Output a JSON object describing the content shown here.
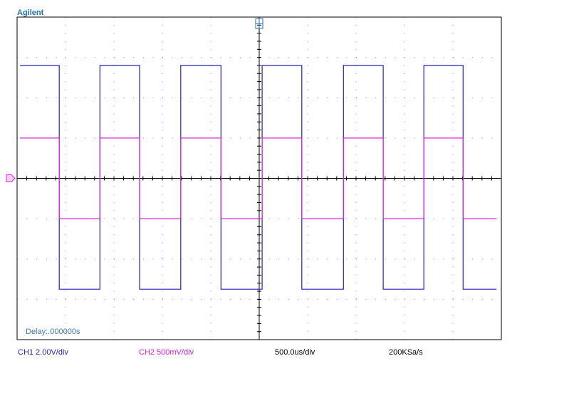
{
  "brand": "Agilent",
  "chart_data": {
    "type": "line",
    "x": [
      30,
      435,
      435,
      855,
      855,
      1265,
      1265,
      1690,
      1690,
      2105,
      2105,
      2530,
      2530,
      2940,
      2940,
      3370,
      3370,
      3780,
      3780,
      4200,
      4200,
      4605,
      4605,
      4950
    ],
    "xlim": [
      0,
      5000
    ],
    "ylim": [
      -4,
      4
    ],
    "series": [
      {
        "name": "CH1 2.00V/div",
        "color": "#2424b4",
        "values": [
          2.8,
          2.8,
          -2.75,
          -2.75,
          2.8,
          2.8,
          -2.75,
          -2.75,
          2.8,
          2.8,
          -2.75,
          -2.75,
          2.8,
          2.8,
          -2.75,
          -2.75,
          2.8,
          2.8,
          -2.75,
          -2.75,
          2.8,
          2.8,
          -2.75,
          -2.75
        ]
      },
      {
        "name": "CH2 500mV/div",
        "color": "#e020e0",
        "values": [
          1.0,
          1.0,
          -1.0,
          -1.0,
          1.0,
          1.0,
          -1.0,
          -1.0,
          1.0,
          1.0,
          -1.0,
          -1.0,
          1.0,
          1.0,
          -1.0,
          -1.0,
          1.0,
          1.0,
          -1.0,
          -1.0,
          1.0,
          1.0,
          -1.0,
          -1.0
        ]
      }
    ],
    "timebase": "500.0us/div",
    "sample_rate": "200KSa/s",
    "delay": "Delay:.000000s"
  }
}
